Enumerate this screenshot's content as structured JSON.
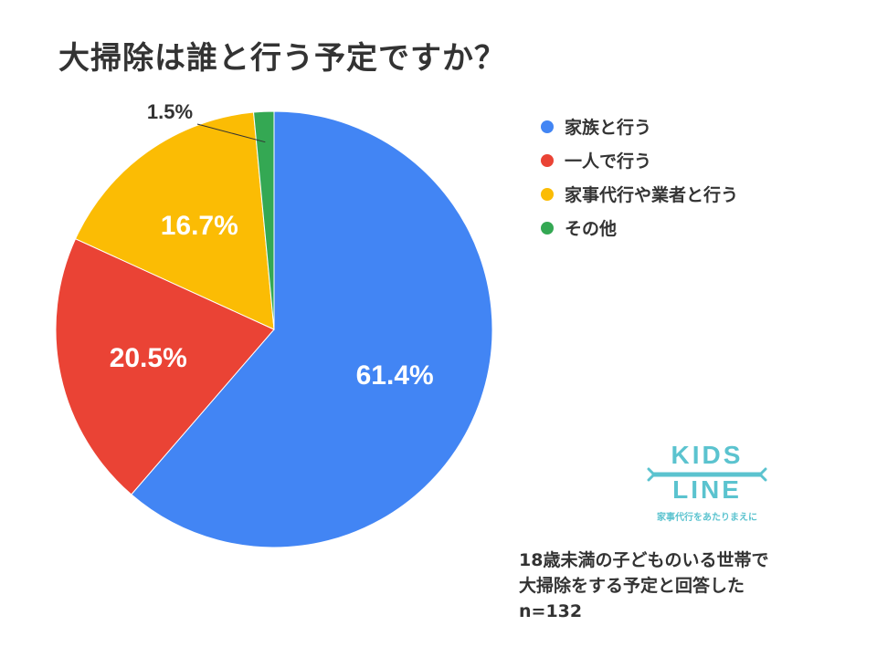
{
  "title": "大掃除は誰と行う予定ですか？",
  "chart_data": {
    "type": "pie",
    "categories": [
      "家族と行う",
      "一人で行う",
      "家事代行や業者と行う",
      "その他"
    ],
    "values": [
      61.4,
      20.5,
      16.7,
      1.5
    ],
    "labels": [
      "61.4%",
      "20.5%",
      "16.7%",
      "1.5%"
    ],
    "colors": [
      "#4285F4",
      "#EA4335",
      "#FBBC04",
      "#34A853"
    ],
    "start_angle_deg": 0,
    "direction": "clockwise",
    "legend_position": "right"
  },
  "note": {
    "line1": "18歳未満の子どものいる世帯で",
    "line2": "大掃除をする予定と回答した",
    "line3": "n=132"
  },
  "logo": {
    "line1": "KIDS",
    "line2": "LINE",
    "tagline": "家事代行をあたりまえに",
    "color": "#5BC3CF"
  }
}
